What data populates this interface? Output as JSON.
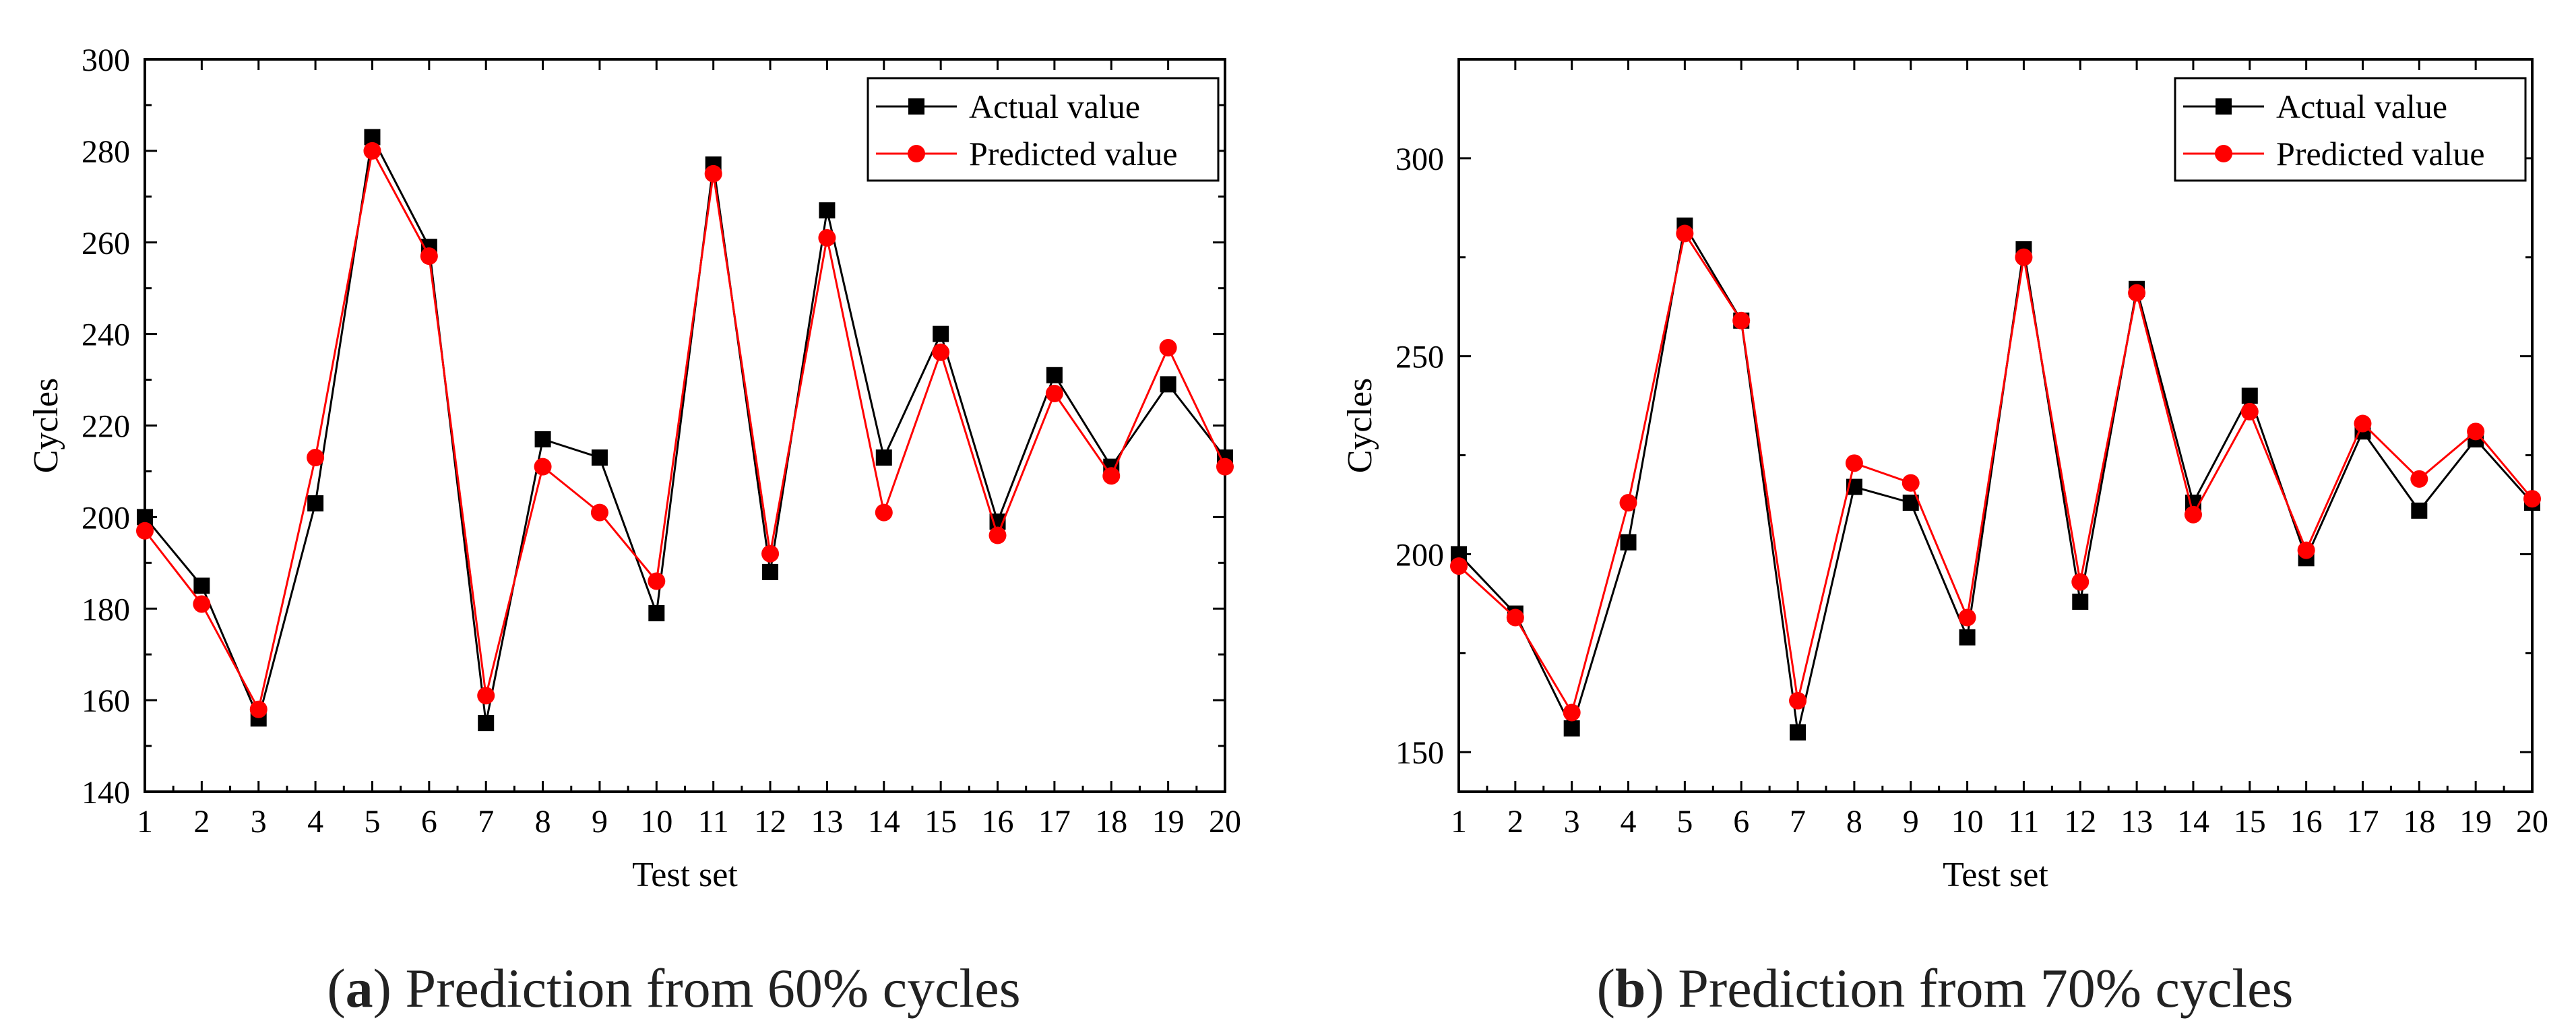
{
  "chart_data": [
    {
      "type": "line",
      "xlabel": "Test set",
      "ylabel": "Cycles",
      "xlim": [
        1,
        20
      ],
      "ylim": [
        140,
        300
      ],
      "xticks": [
        1,
        2,
        3,
        4,
        5,
        6,
        7,
        8,
        9,
        10,
        11,
        12,
        13,
        14,
        15,
        16,
        17,
        18,
        19,
        20
      ],
      "yticks": [
        140,
        160,
        180,
        200,
        220,
        240,
        260,
        280,
        300
      ],
      "grid": false,
      "legend_position": "top-right",
      "x": [
        1,
        2,
        3,
        4,
        5,
        6,
        7,
        8,
        9,
        10,
        11,
        12,
        13,
        14,
        15,
        16,
        17,
        18,
        19,
        20
      ],
      "series": [
        {
          "name": "Actual value",
          "color": "#000000",
          "marker": "square",
          "values": [
            200,
            185,
            156,
            203,
            283,
            259,
            155,
            217,
            213,
            179,
            277,
            188,
            267,
            213,
            240,
            199,
            231,
            211,
            229,
            213
          ]
        },
        {
          "name": "Predicted value",
          "color": "#ff0000",
          "marker": "circle",
          "values": [
            197,
            181,
            158,
            213,
            280,
            257,
            161,
            211,
            201,
            186,
            275,
            192,
            261,
            201,
            236,
            196,
            227,
            209,
            237,
            211
          ]
        }
      ],
      "caption_label": "a",
      "caption_text": "Prediction from 60% cycles",
      "caption_open": "(",
      "caption_close": ")"
    },
    {
      "type": "line",
      "xlabel": "Test set",
      "ylabel": "Cycles",
      "xlim": [
        1,
        20
      ],
      "ylim": [
        140,
        325
      ],
      "xticks": [
        1,
        2,
        3,
        4,
        5,
        6,
        7,
        8,
        9,
        10,
        11,
        12,
        13,
        14,
        15,
        16,
        17,
        18,
        19,
        20
      ],
      "yticks": [
        150,
        200,
        250,
        300
      ],
      "yticks_minor": [
        175,
        225,
        275
      ],
      "grid": false,
      "legend_position": "top-right",
      "x": [
        1,
        2,
        3,
        4,
        5,
        6,
        7,
        8,
        9,
        10,
        11,
        12,
        13,
        14,
        15,
        16,
        17,
        18,
        19,
        20
      ],
      "series": [
        {
          "name": "Actual value",
          "color": "#000000",
          "marker": "square",
          "values": [
            200,
            185,
            156,
            203,
            283,
            259,
            155,
            217,
            213,
            179,
            277,
            188,
            267,
            213,
            240,
            199,
            231,
            211,
            229,
            213
          ]
        },
        {
          "name": "Predicted value",
          "color": "#ff0000",
          "marker": "circle",
          "values": [
            197,
            184,
            160,
            213,
            281,
            259,
            163,
            223,
            218,
            184,
            275,
            193,
            266,
            210,
            236,
            201,
            233,
            219,
            231,
            214
          ]
        }
      ],
      "caption_label": "b",
      "caption_text": "Prediction from 70% cycles",
      "caption_open": "(",
      "caption_close": ")"
    }
  ]
}
